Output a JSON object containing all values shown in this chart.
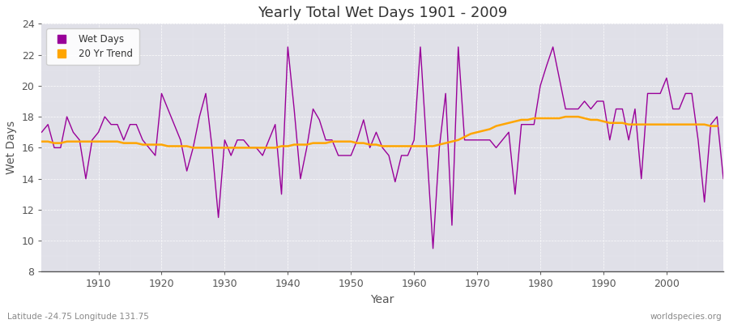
{
  "title": "Yearly Total Wet Days 1901 - 2009",
  "xlabel": "Year",
  "ylabel": "Wet Days",
  "xlim": [
    1901,
    2009
  ],
  "ylim": [
    8,
    24
  ],
  "yticks": [
    8,
    10,
    12,
    14,
    16,
    18,
    20,
    22,
    24
  ],
  "xticks": [
    1910,
    1920,
    1930,
    1940,
    1950,
    1960,
    1970,
    1980,
    1990,
    2000
  ],
  "plot_bg_color": "#e0e0e8",
  "fig_bg_color": "#ffffff",
  "wet_days_color": "#990099",
  "trend_color": "#FFA500",
  "legend_labels": [
    "Wet Days",
    "20 Yr Trend"
  ],
  "footer_left": "Latitude -24.75 Longitude 131.75",
  "footer_right": "worldspecies.org",
  "years": [
    1901,
    1902,
    1903,
    1904,
    1905,
    1906,
    1907,
    1908,
    1909,
    1910,
    1911,
    1912,
    1913,
    1914,
    1915,
    1916,
    1917,
    1918,
    1919,
    1920,
    1921,
    1922,
    1923,
    1924,
    1925,
    1926,
    1927,
    1928,
    1929,
    1930,
    1931,
    1932,
    1933,
    1934,
    1935,
    1936,
    1937,
    1938,
    1939,
    1940,
    1941,
    1942,
    1943,
    1944,
    1945,
    1946,
    1947,
    1948,
    1949,
    1950,
    1951,
    1952,
    1953,
    1954,
    1955,
    1956,
    1957,
    1958,
    1959,
    1960,
    1961,
    1962,
    1963,
    1964,
    1965,
    1966,
    1967,
    1968,
    1969,
    1970,
    1971,
    1972,
    1973,
    1974,
    1975,
    1976,
    1977,
    1978,
    1979,
    1980,
    1981,
    1982,
    1983,
    1984,
    1985,
    1986,
    1987,
    1988,
    1989,
    1990,
    1991,
    1992,
    1993,
    1994,
    1995,
    1996,
    1997,
    1998,
    1999,
    2000,
    2001,
    2002,
    2003,
    2004,
    2005,
    2006,
    2007,
    2008,
    2009
  ],
  "wet_days": [
    17.0,
    17.5,
    16.0,
    16.0,
    18.0,
    17.0,
    16.5,
    14.0,
    16.5,
    17.0,
    18.0,
    17.5,
    17.5,
    16.5,
    17.5,
    17.5,
    16.5,
    16.0,
    15.5,
    19.5,
    18.5,
    17.5,
    16.5,
    14.5,
    16.0,
    18.0,
    19.5,
    16.0,
    11.5,
    16.5,
    15.5,
    16.5,
    16.5,
    16.0,
    16.0,
    15.5,
    16.5,
    17.5,
    13.0,
    22.5,
    18.5,
    14.0,
    16.0,
    18.5,
    17.8,
    16.5,
    16.5,
    15.5,
    15.5,
    15.5,
    16.5,
    17.8,
    16.0,
    17.0,
    16.0,
    15.5,
    13.8,
    15.5,
    15.5,
    16.5,
    22.5,
    16.0,
    9.5,
    16.0,
    19.5,
    11.0,
    22.5,
    16.5,
    16.5,
    16.5,
    16.5,
    16.5,
    16.0,
    16.5,
    17.0,
    13.0,
    17.5,
    17.5,
    17.5,
    20.0,
    21.3,
    22.5,
    20.5,
    18.5,
    18.5,
    18.5,
    19.0,
    18.5,
    19.0,
    19.0,
    16.5,
    18.5,
    18.5,
    16.5,
    18.5,
    14.0,
    19.5,
    19.5,
    19.5,
    20.5,
    18.5,
    18.5,
    19.5,
    19.5,
    16.5,
    12.5,
    17.5,
    18.0,
    14.0
  ],
  "trend": [
    16.4,
    16.4,
    16.3,
    16.3,
    16.4,
    16.4,
    16.4,
    16.4,
    16.4,
    16.4,
    16.4,
    16.4,
    16.4,
    16.3,
    16.3,
    16.3,
    16.2,
    16.2,
    16.2,
    16.2,
    16.1,
    16.1,
    16.1,
    16.1,
    16.0,
    16.0,
    16.0,
    16.0,
    16.0,
    16.0,
    16.0,
    16.0,
    16.0,
    16.0,
    16.0,
    16.0,
    16.0,
    16.0,
    16.1,
    16.1,
    16.2,
    16.2,
    16.2,
    16.3,
    16.3,
    16.3,
    16.4,
    16.4,
    16.4,
    16.4,
    16.3,
    16.3,
    16.2,
    16.2,
    16.1,
    16.1,
    16.1,
    16.1,
    16.1,
    16.1,
    16.1,
    16.1,
    16.1,
    16.2,
    16.3,
    16.4,
    16.5,
    16.7,
    16.9,
    17.0,
    17.1,
    17.2,
    17.4,
    17.5,
    17.6,
    17.7,
    17.8,
    17.8,
    17.9,
    17.9,
    17.9,
    17.9,
    17.9,
    18.0,
    18.0,
    18.0,
    17.9,
    17.8,
    17.8,
    17.7,
    17.6,
    17.6,
    17.6,
    17.5,
    17.5,
    17.5,
    17.5,
    17.5,
    17.5,
    17.5,
    17.5,
    17.5,
    17.5,
    17.5,
    17.5,
    17.5,
    17.4,
    17.4,
    null
  ]
}
